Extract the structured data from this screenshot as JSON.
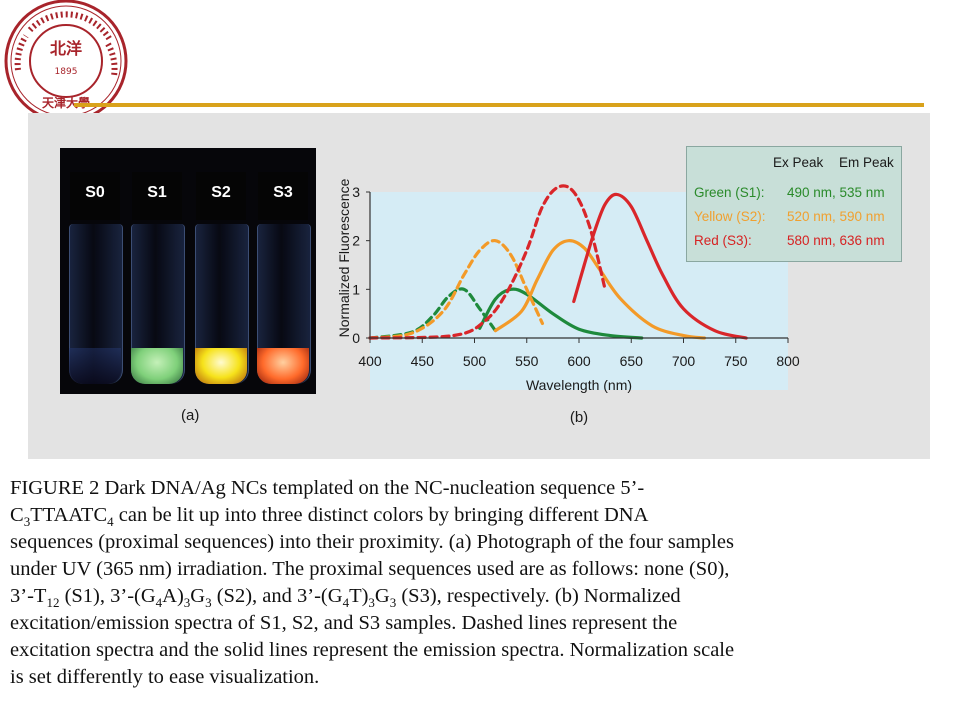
{
  "logo": {
    "ring_text": "TIANJIN UNIVERSITY (PEIYANG UNIVERSITY)",
    "center_chars": "北洋",
    "year": "1895",
    "bottom_chars": "天津大學"
  },
  "photo": {
    "panel_label": "(a)",
    "vials": [
      {
        "label": "S0",
        "color": "#0a0a14"
      },
      {
        "label": "S1",
        "color": "#7fd07a"
      },
      {
        "label": "S2",
        "color": "#f6e21a"
      },
      {
        "label": "S3",
        "color": "#ff6a2a"
      }
    ]
  },
  "chart_data": {
    "type": "line",
    "xlabel": "Wavelength (nm)",
    "ylabel": "Normalized Fluorescence",
    "panel_label": "(b)",
    "xlim": [
      400,
      800
    ],
    "ylim": [
      0,
      3
    ],
    "xticks": [
      400,
      450,
      500,
      550,
      600,
      650,
      700,
      750,
      800
    ],
    "yticks": [
      0,
      1,
      2,
      3
    ],
    "series": [
      {
        "name": "Green (S1) excitation",
        "style": "dashed",
        "color": "#1e8a3c",
        "peak": 490,
        "x": [
          400,
          440,
          460,
          475,
          490,
          505,
          520
        ],
        "y": [
          0.0,
          0.12,
          0.45,
          0.85,
          1.0,
          0.6,
          0.15
        ]
      },
      {
        "name": "Green (S1) emission",
        "style": "solid",
        "color": "#1e8a3c",
        "peak": 535,
        "x": [
          505,
          520,
          535,
          550,
          575,
          600,
          630,
          660
        ],
        "y": [
          0.2,
          0.8,
          1.0,
          0.9,
          0.5,
          0.18,
          0.05,
          0.0
        ]
      },
      {
        "name": "Yellow (S2) excitation",
        "style": "dashed",
        "color": "#f39a28",
        "peak": 520,
        "x": [
          400,
          440,
          470,
          490,
          505,
          520,
          535,
          550,
          565
        ],
        "y": [
          0.0,
          0.1,
          0.55,
          1.3,
          1.8,
          2.0,
          1.7,
          1.0,
          0.3
        ]
      },
      {
        "name": "Yellow (S2) emission",
        "style": "solid",
        "color": "#f39a28",
        "peak": 590,
        "x": [
          520,
          545,
          560,
          575,
          590,
          605,
          620,
          640,
          670,
          700,
          720
        ],
        "y": [
          0.15,
          0.55,
          1.2,
          1.8,
          2.0,
          1.85,
          1.4,
          0.8,
          0.25,
          0.05,
          0.0
        ]
      },
      {
        "name": "Red (S3) excitation",
        "style": "dashed",
        "color": "#d9262a",
        "peak": 580,
        "x": [
          400,
          480,
          510,
          530,
          550,
          565,
          580,
          595,
          610,
          625
        ],
        "y": [
          0.0,
          0.05,
          0.35,
          0.9,
          1.8,
          2.7,
          3.1,
          3.0,
          2.3,
          1.0
        ]
      },
      {
        "name": "Red (S3) emission",
        "style": "solid",
        "color": "#d9262a",
        "peak": 636,
        "x": [
          595,
          605,
          615,
          625,
          636,
          650,
          665,
          680,
          700,
          730,
          760
        ],
        "y": [
          0.75,
          1.5,
          2.2,
          2.75,
          2.95,
          2.7,
          2.0,
          1.3,
          0.6,
          0.15,
          0.0
        ]
      }
    ]
  },
  "legend": {
    "header_ex": "Ex Peak",
    "header_em": "Em Peak",
    "rows": [
      {
        "name": "Green (S1):",
        "values": "490 nm, 535 nm",
        "color": "#2a8a2a"
      },
      {
        "name": "Yellow (S2):",
        "values": "520 nm, 590 nm",
        "color": "#f0a030"
      },
      {
        "name": "Red (S3):",
        "values": "580 nm, 636 nm",
        "color": "#d62222"
      }
    ]
  },
  "caption": {
    "l1": "FIGURE 2 Dark DNA/Ag NCs templated on the NC-nucleation sequence 5’-",
    "l2a": "C",
    "l2b": "3",
    "l2c": "TTAATC",
    "l2d": "4",
    "l2e": " can be lit up into three distinct colors by bringing different DNA",
    "l3": "sequences (proximal sequences) into their proximity. (a) Photograph of the four samples",
    "l4": "under UV (365 nm) irradiation. The proximal sequences used are as follows: none (S0),",
    "l5a": "3’-T",
    "l5b": "12",
    "l5c": " (S1), 3’-(G",
    "l5d": "4",
    "l5e": "A)",
    "l5f": "3",
    "l5g": "G",
    "l5h": "3",
    "l5i": " (S2), and 3’-(G",
    "l5j": "4",
    "l5k": "T)",
    "l5l": "3",
    "l5m": "G",
    "l5n": "3",
    "l5o": " (S3), respectively. (b) Normalized",
    "l6": "excitation/emission spectra of S1, S2, and S3 samples. Dashed lines represent the",
    "l7": "excitation spectra and the solid lines represent the emission spectra. Normalization scale",
    "l8": "is set differently to ease visualization."
  }
}
